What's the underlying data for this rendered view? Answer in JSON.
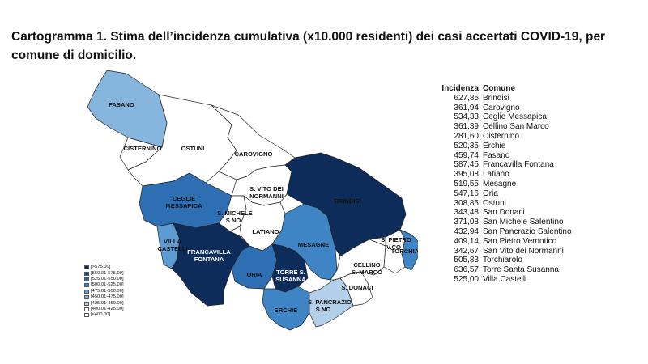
{
  "title": "Cartogramma 1. Stima dell’incidenza cumulativa (x10.000 residenti) dei casi accertati COVID-19, per comune di domicilio.",
  "map": {
    "labels": {
      "fasano": "FASANO",
      "cisternino": "CISTERNINO",
      "ostuni": "OSTUNI",
      "carovigno": "CAROVIGNO",
      "vito_1": "S. VITO DEI",
      "vito_2": "NORMANNI",
      "brindisi": "BRINDISI",
      "ceglie_1": "CEGLIE",
      "ceglie_2": "MESSAPICA",
      "michele_1": "S. MICHELE",
      "michele_2": "S.NO",
      "latiano": "LATIANO",
      "villa_1": "VILLA",
      "villa_2": "CASTELLI",
      "francavilla_1": "FRANCAVILLA",
      "francavilla_2": "FONTANA",
      "mesagne": "MESAGNE",
      "oria": "ORIA",
      "torre_1": "TORRE S.",
      "torre_2": "SUSANNA",
      "pietro_1": "S. PIETRO",
      "pietro_2": "V.CO",
      "torchiarolo": "TORCHIAROLO",
      "cellino_1": "CELLINO",
      "cellino_2": "S. MARCO",
      "donaci": "S. DONACI",
      "pancrazio_1": "S. PANCRAZIO",
      "pancrazio_2": "S.NO",
      "erchie": "ERCHIE"
    },
    "colors": {
      "c575": "#0e2c5a",
      "c550": "#1c4f8c",
      "c525": "#2e6fb3",
      "c500": "#3f84c5",
      "c475": "#5d9bd3",
      "c450": "#86b5de",
      "c425": "#b3cfea",
      "c400": "#ffffff"
    }
  },
  "legend": [
    {
      "label": "[>575.00]",
      "color": "#0e2c5a"
    },
    {
      "label": "[550.01-575.00]",
      "color": "#1c4f8c"
    },
    {
      "label": "[525.01-550.00]",
      "color": "#2e6fb3"
    },
    {
      "label": "[500.01-525.00]",
      "color": "#3f84c5"
    },
    {
      "label": "[475.01-500.00]",
      "color": "#5d9bd3"
    },
    {
      "label": "[450.01-475.00]",
      "color": "#86b5de"
    },
    {
      "label": "[425.01-450.00]",
      "color": "#b3cfea"
    },
    {
      "label": "[400.01-425.00]",
      "color": "#ffffff"
    },
    {
      "label": "[≤400.00]",
      "color": "#ffffff"
    }
  ],
  "table": {
    "header_incidence": "Incidenza",
    "header_comune": "Comune",
    "rows": [
      {
        "incidenza": "627,85",
        "comune": "Brindisi"
      },
      {
        "incidenza": "361,94",
        "comune": "Carovigno"
      },
      {
        "incidenza": "534,33",
        "comune": "Ceglie Messapica"
      },
      {
        "incidenza": "361,39",
        "comune": "Cellino San Marco"
      },
      {
        "incidenza": "281,60",
        "comune": "Cisternino"
      },
      {
        "incidenza": "520,35",
        "comune": "Erchie"
      },
      {
        "incidenza": "459,74",
        "comune": "Fasano"
      },
      {
        "incidenza": "587,45",
        "comune": "Francavilla Fontana"
      },
      {
        "incidenza": "395,08",
        "comune": "Latiano"
      },
      {
        "incidenza": "519,55",
        "comune": "Mesagne"
      },
      {
        "incidenza": "547,16",
        "comune": "Oria"
      },
      {
        "incidenza": "308,85",
        "comune": "Ostuni"
      },
      {
        "incidenza": "343,48",
        "comune": "San Donaci"
      },
      {
        "incidenza": "371,08",
        "comune": "San Michele Salentino"
      },
      {
        "incidenza": "432,94",
        "comune": "San Pancrazio Salentino"
      },
      {
        "incidenza": "409,14",
        "comune": "San Pietro Vernotico"
      },
      {
        "incidenza": "342,67",
        "comune": "San Vito dei Normanni"
      },
      {
        "incidenza": "505,83",
        "comune": "Torchiarolo"
      },
      {
        "incidenza": "636,57",
        "comune": "Torre Santa Susanna"
      },
      {
        "incidenza": "525,00",
        "comune": "Villa Castelli"
      }
    ]
  }
}
